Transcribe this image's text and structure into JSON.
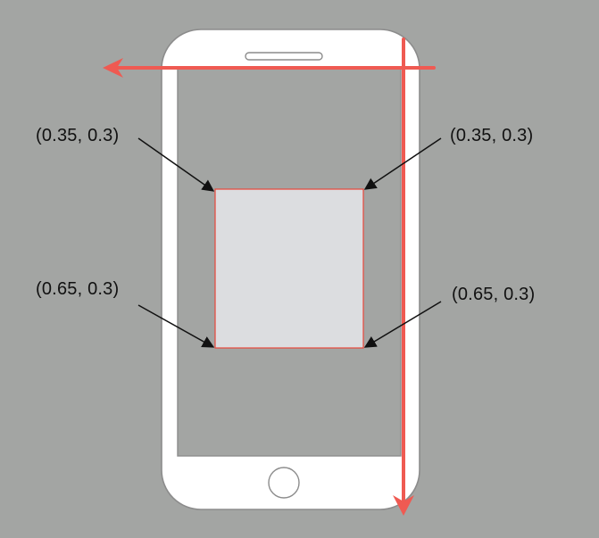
{
  "colors": {
    "background": "#a3a5a3",
    "phone_body": "#ffffff",
    "phone_outline": "#8c8c8c",
    "screen": "#a3a5a3",
    "region_fill": "#dcdde0",
    "region_stroke": "#e8473a",
    "axis": "#ef5a52",
    "arrow": "#111111"
  },
  "icons": {
    "speaker": "speaker-slot-icon",
    "home_button": "home-button-icon"
  },
  "labels": {
    "top_left": "(0.35, 0.3)",
    "top_right": "(0.35, 0.3)",
    "bottom_left": "(0.65, 0.3)",
    "bottom_right": "(0.65, 0.3)"
  }
}
